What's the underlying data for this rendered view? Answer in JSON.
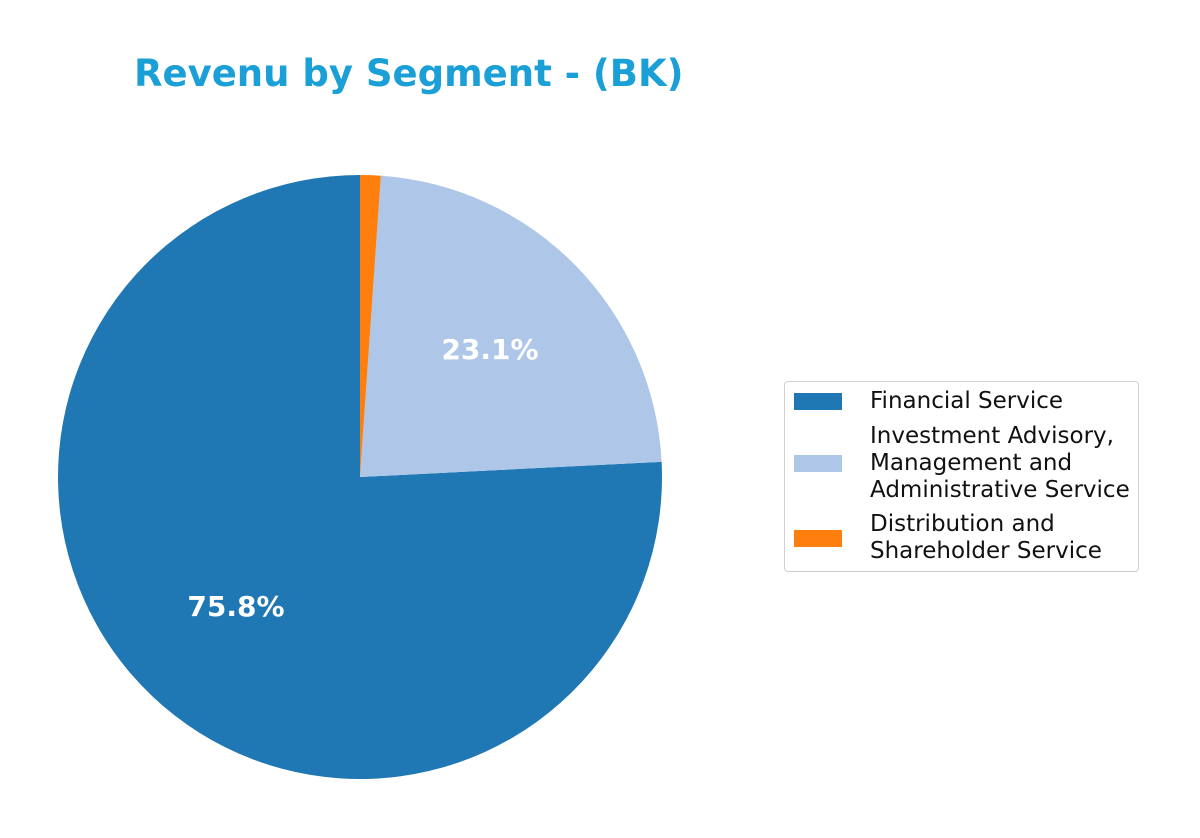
{
  "chart_data": {
    "type": "pie",
    "title": "Revenu by Segment - (BK)",
    "categories": [
      "Financial Service",
      "Investment Advisory, Management and Administrative Service",
      "Distribution and Shareholder Service"
    ],
    "values": [
      75.8,
      23.1,
      1.1
    ],
    "labels": [
      "75.8%",
      "23.1%",
      ""
    ],
    "colors": [
      "#1f77b4",
      "#aec7e8",
      "#ff7f0e"
    ],
    "startangle": 90,
    "counterclock": true,
    "legend_position": "right"
  },
  "title": "Revenu by Segment - (BK)",
  "legend": {
    "items": [
      {
        "lines": [
          "Financial Service"
        ],
        "color": "#1f77b4"
      },
      {
        "lines": [
          "Investment Advisory,",
          "Management and",
          "Administrative Service"
        ],
        "color": "#aec7e8"
      },
      {
        "lines": [
          "Distribution and",
          "Shareholder Service"
        ],
        "color": "#ff7f0e"
      }
    ]
  },
  "slice_labels": {
    "financial": "75.8%",
    "investment": "23.1%"
  }
}
